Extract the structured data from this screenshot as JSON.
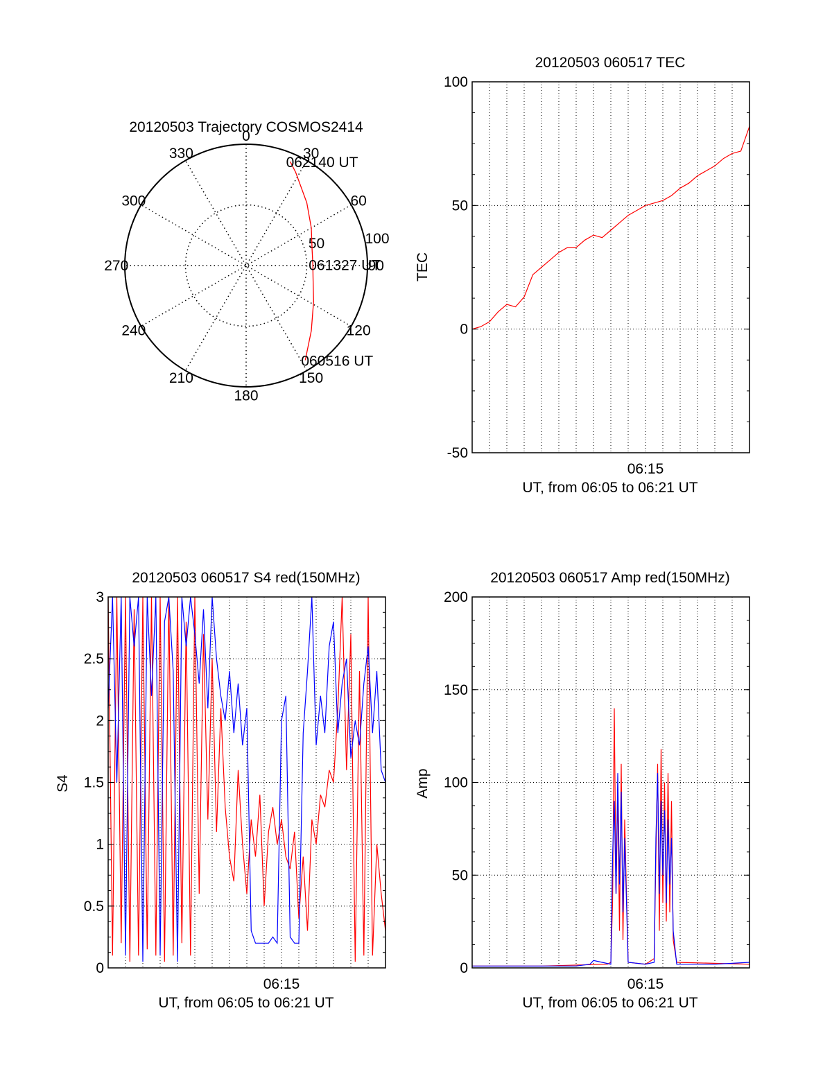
{
  "chart_data": [
    {
      "type": "polar",
      "title": "20120503 Trajectory COSMOS2414",
      "azimuth_labels": [
        "0",
        "30",
        "60",
        "90",
        "120",
        "150",
        "180",
        "210",
        "240",
        "270",
        "300",
        "330"
      ],
      "radial_labels": [
        "50",
        "100"
      ],
      "radial_values": [
        50,
        100
      ],
      "series": [
        {
          "color": "#ff0000",
          "points": [
            {
              "az": 148,
              "r": 92
            },
            {
              "az": 135,
              "r": 76
            },
            {
              "az": 118,
              "r": 63
            },
            {
              "az": 100,
              "r": 56
            },
            {
              "az": 89,
              "r": 55
            },
            {
              "az": 76,
              "r": 56
            },
            {
              "az": 60,
              "r": 62
            },
            {
              "az": 44,
              "r": 72
            },
            {
              "az": 28,
              "r": 87
            },
            {
              "az": 23,
              "r": 93
            }
          ]
        }
      ],
      "annotations": [
        {
          "text": "062140 UT",
          "az": 23,
          "r": 93
        },
        {
          "text": "061327 UT",
          "az": 89,
          "r": 55
        },
        {
          "text": "060516 UT",
          "az": 148,
          "r": 92
        }
      ]
    },
    {
      "type": "line",
      "title": "20120503 060517 TEC",
      "xlabel": "UT, from 06:05 to 06:21 UT",
      "ylabel": "TEC",
      "ylim": [
        -50,
        100
      ],
      "yticks": [
        "-50",
        "0",
        "50",
        "100"
      ],
      "ytick_values": [
        -50,
        0,
        50,
        100
      ],
      "xlim": [
        0,
        16
      ],
      "xtick_label": "06:15",
      "xtick_value": 10,
      "grid": true,
      "series": [
        {
          "color": "#ff0000",
          "x": [
            0,
            0.5,
            1.0,
            1.5,
            2.0,
            2.5,
            3.0,
            3.5,
            4.0,
            4.5,
            5.0,
            5.5,
            6.0,
            6.5,
            7.0,
            7.5,
            8.0,
            8.5,
            9.0,
            9.5,
            10.0,
            10.5,
            11.0,
            11.5,
            12.0,
            12.5,
            13.0,
            13.5,
            14.0,
            14.5,
            15.0,
            15.5,
            16.0
          ],
          "values": [
            0,
            1,
            3,
            7,
            10,
            9,
            13,
            22,
            25,
            28,
            31,
            33,
            33,
            36,
            38,
            37,
            40,
            43,
            46,
            48,
            50,
            51,
            52,
            54,
            57,
            59,
            62,
            64,
            66,
            69,
            71,
            72,
            82
          ]
        }
      ]
    },
    {
      "type": "line",
      "title": "20120503 060517 S4 red(150MHz)",
      "xlabel": "UT, from 06:05 to 06:21 UT",
      "ylabel": "S4",
      "ylim": [
        0,
        3
      ],
      "yticks": [
        "0",
        "0.5",
        "1",
        "1.5",
        "2",
        "2.5",
        "3"
      ],
      "ytick_values": [
        0,
        0.5,
        1,
        1.5,
        2,
        2.5,
        3
      ],
      "xlim": [
        0,
        16
      ],
      "xtick_label": "06:15",
      "xtick_value": 10,
      "grid": true,
      "series": [
        {
          "color": "#ff0000",
          "x": [
            0,
            0.25,
            0.5,
            0.75,
            1.0,
            1.25,
            1.5,
            1.75,
            2.0,
            2.25,
            2.5,
            2.75,
            3.0,
            3.25,
            3.5,
            3.75,
            4.0,
            4.25,
            4.5,
            4.75,
            5.0,
            5.25,
            5.5,
            5.75,
            6.0,
            6.25,
            6.5,
            6.75,
            7.0,
            7.25,
            7.5,
            7.75,
            8.0,
            8.25,
            8.5,
            8.75,
            9.0,
            9.25,
            9.5,
            9.75,
            10.0,
            10.25,
            10.5,
            10.75,
            11.0,
            11.25,
            11.5,
            11.75,
            12.0,
            12.25,
            12.5,
            12.75,
            13.0,
            13.25,
            13.5,
            13.75,
            14.0,
            14.25,
            14.5,
            14.75,
            15.0,
            15.25,
            15.5,
            15.75,
            16.0
          ],
          "values": [
            3,
            0.1,
            3,
            0.2,
            3,
            0.05,
            2.9,
            0.1,
            3,
            0.15,
            3,
            0.1,
            3,
            0.05,
            3,
            0.1,
            3,
            0.2,
            2.8,
            0.1,
            3,
            0.6,
            2.7,
            1.2,
            2.5,
            1.1,
            2.1,
            1.3,
            0.9,
            0.7,
            1.6,
            1.0,
            0.6,
            1.2,
            0.9,
            1.4,
            0.5,
            1.1,
            1.3,
            1.0,
            1.2,
            0.9,
            0.8,
            1.1,
            0.4,
            0.9,
            0.3,
            1.2,
            1.0,
            1.4,
            1.3,
            1.6,
            1.5,
            2.1,
            3,
            1.6,
            2.7,
            0.05,
            2.4,
            0.1,
            3,
            0.1,
            1.0,
            0.6,
            0.3
          ]
        },
        {
          "color": "#0000ff",
          "x": [
            0,
            0.25,
            0.5,
            0.75,
            1.0,
            1.25,
            1.5,
            1.75,
            2.0,
            2.25,
            2.5,
            2.75,
            3.0,
            3.25,
            3.5,
            3.75,
            4.0,
            4.25,
            4.5,
            4.75,
            5.0,
            5.25,
            5.5,
            5.75,
            6.0,
            6.25,
            6.5,
            6.75,
            7.0,
            7.25,
            7.5,
            7.75,
            8.0,
            8.25,
            8.5,
            8.75,
            9.0,
            9.25,
            9.5,
            9.75,
            10.0,
            10.25,
            10.5,
            10.75,
            11.0,
            11.25,
            11.5,
            11.75,
            12.0,
            12.25,
            12.5,
            12.75,
            13.0,
            13.25,
            13.5,
            13.75,
            14.0,
            14.25,
            14.5,
            14.75,
            15.0,
            15.25,
            15.5,
            15.75,
            16.0
          ],
          "values": [
            2.1,
            3,
            1.5,
            3,
            0.1,
            3,
            2.6,
            3,
            0.05,
            3,
            2.2,
            3,
            0.1,
            2.8,
            3,
            2.4,
            0.05,
            3,
            2.6,
            3,
            2.7,
            2.3,
            2.9,
            2.1,
            3,
            2.5,
            2.2,
            2.0,
            2.4,
            1.9,
            2.3,
            1.8,
            2.1,
            0.3,
            0.2,
            0.2,
            0.2,
            0.2,
            0.25,
            0.2,
            2.0,
            2.2,
            0.25,
            0.2,
            0.2,
            1.9,
            2.4,
            3,
            1.8,
            2.2,
            1.9,
            2.6,
            2.8,
            1.9,
            2.3,
            2.5,
            1.7,
            2.0,
            1.8,
            2.3,
            2.6,
            1.9,
            2.4,
            1.6,
            1.5
          ]
        }
      ]
    },
    {
      "type": "line",
      "title": "20120503 060517 Amp red(150MHz)",
      "xlabel": "UT, from 06:05 to 06:21 UT",
      "ylabel": "Amp",
      "ylim": [
        0,
        200
      ],
      "yticks": [
        "0",
        "50",
        "100",
        "150",
        "200"
      ],
      "ytick_values": [
        0,
        50,
        100,
        150,
        200
      ],
      "xlim": [
        0,
        16
      ],
      "xtick_label": "06:15",
      "xtick_value": 10,
      "grid": true,
      "series": [
        {
          "color": "#ff0000",
          "x": [
            0,
            4.0,
            7.8,
            8.0,
            8.1,
            8.2,
            8.3,
            8.4,
            8.5,
            8.6,
            8.7,
            8.8,
            9.0,
            10.0,
            10.5,
            10.6,
            10.7,
            10.8,
            10.9,
            11.0,
            11.1,
            11.2,
            11.3,
            11.4,
            11.5,
            11.6,
            11.8,
            16.0
          ],
          "values": [
            1,
            1,
            2,
            3,
            35,
            140,
            40,
            95,
            20,
            110,
            15,
            80,
            3,
            2,
            5,
            60,
            110,
            20,
            118,
            35,
            100,
            25,
            105,
            30,
            90,
            15,
            3,
            2
          ]
        },
        {
          "color": "#0000ff",
          "x": [
            0,
            2.0,
            4.0,
            6.0,
            6.8,
            7.0,
            7.5,
            8.0,
            8.1,
            8.2,
            8.3,
            8.4,
            8.5,
            8.6,
            8.7,
            8.8,
            9.0,
            10.0,
            10.5,
            10.6,
            10.7,
            10.8,
            10.9,
            11.0,
            11.1,
            11.2,
            11.3,
            11.4,
            11.5,
            11.6,
            11.8,
            14.0,
            16.0
          ],
          "values": [
            1,
            1,
            1,
            1,
            2,
            4,
            3,
            2,
            60,
            90,
            40,
            105,
            45,
            95,
            30,
            70,
            3,
            2,
            3,
            70,
            105,
            40,
            90,
            50,
            85,
            35,
            80,
            45,
            70,
            20,
            2,
            2,
            3
          ]
        }
      ]
    }
  ]
}
